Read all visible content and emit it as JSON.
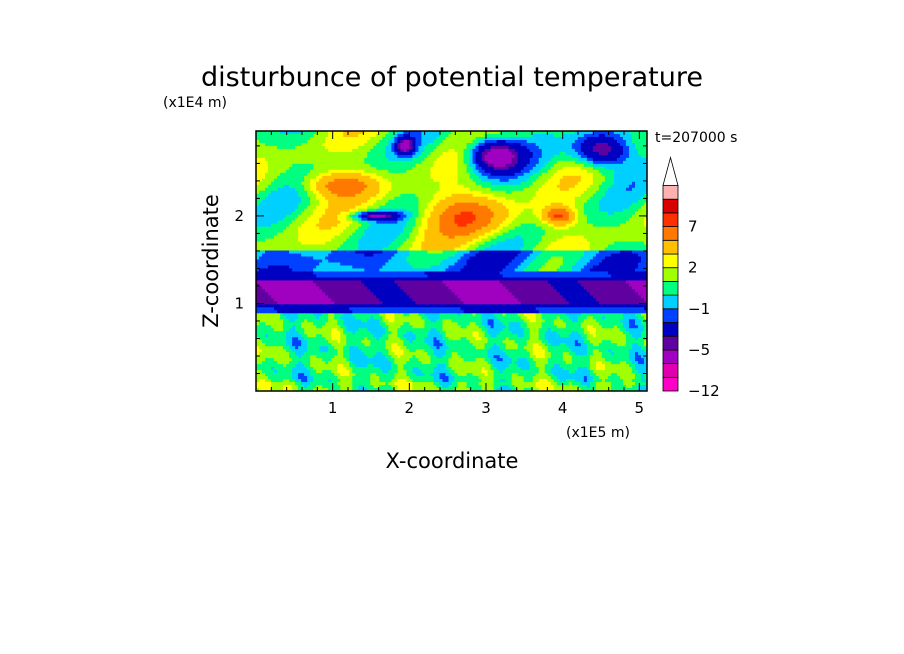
{
  "chart_data": {
    "type": "heatmap",
    "title": "disturbunce of potential temperature",
    "xlabel": "X-coordinate",
    "ylabel": "Z-coordinate",
    "x_unit": "(x1E5 m)",
    "y_unit": "(x1E4 m)",
    "time_label": "t=207000 s",
    "xlim": [
      0,
      5.1
    ],
    "ylim": [
      0,
      2.97
    ],
    "x_ticks": [
      1,
      2,
      3,
      4,
      5
    ],
    "y_ticks": [
      1,
      2
    ],
    "colorbar": {
      "levels": [
        -12,
        -10,
        -8,
        -5,
        -4,
        -2,
        -1,
        0,
        1,
        2,
        3,
        5,
        7,
        9,
        11
      ],
      "labels": [
        -12,
        -5,
        -1,
        2,
        7
      ],
      "colors": [
        "#ff00c8",
        "#e000b0",
        "#a000c0",
        "#6000a0",
        "#0000c0",
        "#0040ff",
        "#00d0ff",
        "#00ff80",
        "#a0ff00",
        "#ffff00",
        "#ffc000",
        "#ff7800",
        "#ff3000",
        "#d80000",
        "#ffb0b0"
      ],
      "extend": "max"
    },
    "field_summary": [
      {
        "region": "z 0.0-0.9",
        "pattern": "green/yellow, near 0 to +2"
      },
      {
        "region": "z 0.9-1.4",
        "pattern": "blue band, -5 to -4"
      },
      {
        "region": "z 1.4-3.0",
        "pattern": "wave-like red/orange and blue cells, -5 to +7"
      }
    ]
  }
}
